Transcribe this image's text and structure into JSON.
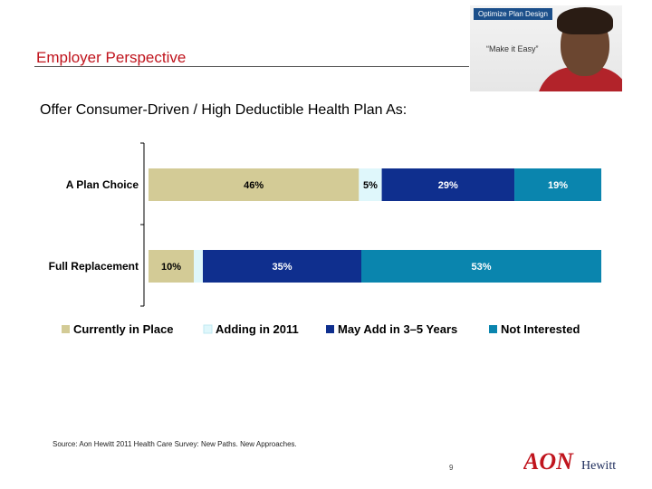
{
  "header": {
    "title": "Employer Perspective",
    "photo_badge": "Optimize Plan Design",
    "photo_tagline": "“Make it Easy”"
  },
  "question": "Offer Consumer-Driven / High Deductible Health Plan As:",
  "chart_data": {
    "type": "bar",
    "orientation": "horizontal",
    "stacked": true,
    "categories": [
      "A Plan Choice",
      "Full Replacement"
    ],
    "series": [
      {
        "name": "Currently in Place",
        "values": [
          46,
          10
        ],
        "labels": [
          "46%",
          "10%"
        ],
        "color": "#d3cb96"
      },
      {
        "name": "Adding in 2011",
        "values": [
          5,
          2
        ],
        "labels": [
          "5%",
          ""
        ],
        "color": "#dff7fb"
      },
      {
        "name": "May Add in 3–5 Years",
        "values": [
          29,
          35
        ],
        "labels": [
          "29%",
          "35%"
        ],
        "color": "#0f2f8e"
      },
      {
        "name": "Not Interested",
        "values": [
          19,
          53
        ],
        "labels": [
          "19%",
          "53%"
        ],
        "color": "#0a85ae"
      }
    ],
    "legend_position": "bottom",
    "grid": false
  },
  "footer": {
    "source": "Source: Aon Hewitt 2011 Health Care Survey: New Paths. New Approaches.",
    "page_number": "9",
    "logo_text_main": "AON",
    "logo_text_sub": "Hewitt"
  },
  "colors": {
    "title_red": "#c0141d",
    "logo_red": "#c0141d"
  }
}
